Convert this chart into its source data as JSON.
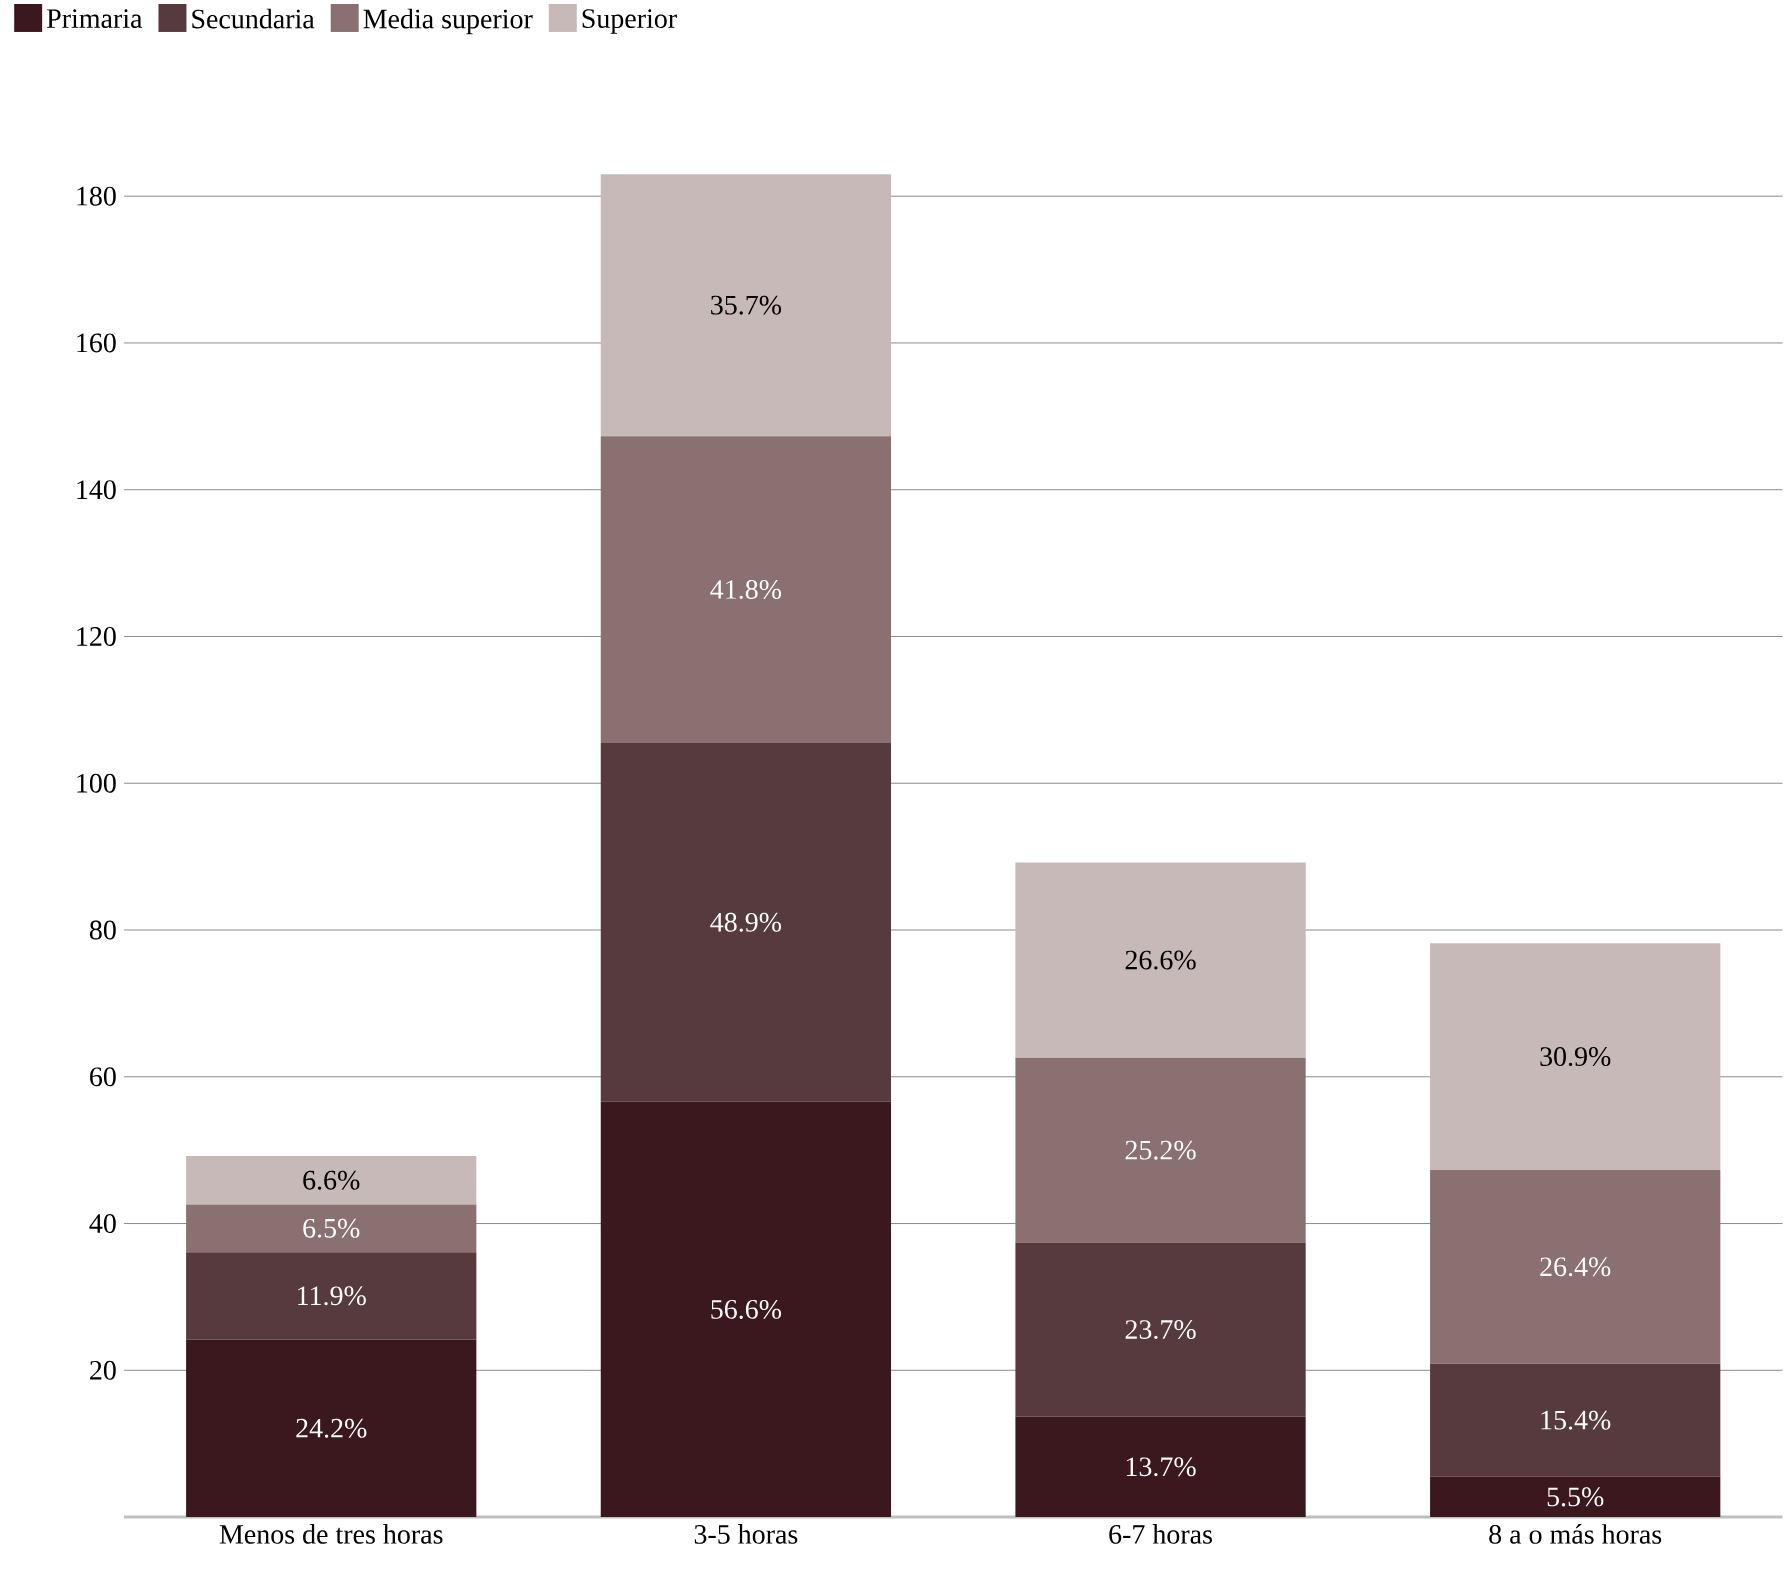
{
  "chart_data": {
    "type": "bar",
    "stacked": true,
    "categories": [
      "Menos de tres horas",
      "3-5 horas",
      "6-7 horas",
      "8 a o más horas"
    ],
    "series": [
      {
        "name": "Primaria",
        "color": "#3b171e",
        "values": [
          24.2,
          56.6,
          13.7,
          5.5
        ],
        "value_labels": [
          "24.2%",
          "56.6%",
          "13.7%",
          "5.5%"
        ]
      },
      {
        "name": "Secundaria",
        "color": "#573a3e",
        "values": [
          11.9,
          48.9,
          23.7,
          15.4
        ],
        "value_labels": [
          "11.9%",
          "48.9%",
          "23.7%",
          "15.4%"
        ]
      },
      {
        "name": "Media superior",
        "color": "#8a7071",
        "values": [
          6.5,
          41.8,
          25.2,
          26.4
        ],
        "value_labels": [
          "6.5%",
          "41.8%",
          "25.2%",
          "26.4%"
        ]
      },
      {
        "name": "Superior",
        "color": "#c8b9b9",
        "values": [
          6.6,
          35.7,
          26.6,
          30.9
        ],
        "value_labels": [
          "6.6%",
          "35.7%",
          "26.6%",
          "30.9%"
        ]
      }
    ],
    "ylim": [
      0,
      183
    ],
    "yticks": [
      20,
      40,
      60,
      80,
      100,
      120,
      140,
      160,
      180
    ],
    "grid": "y",
    "legend": "top left"
  }
}
